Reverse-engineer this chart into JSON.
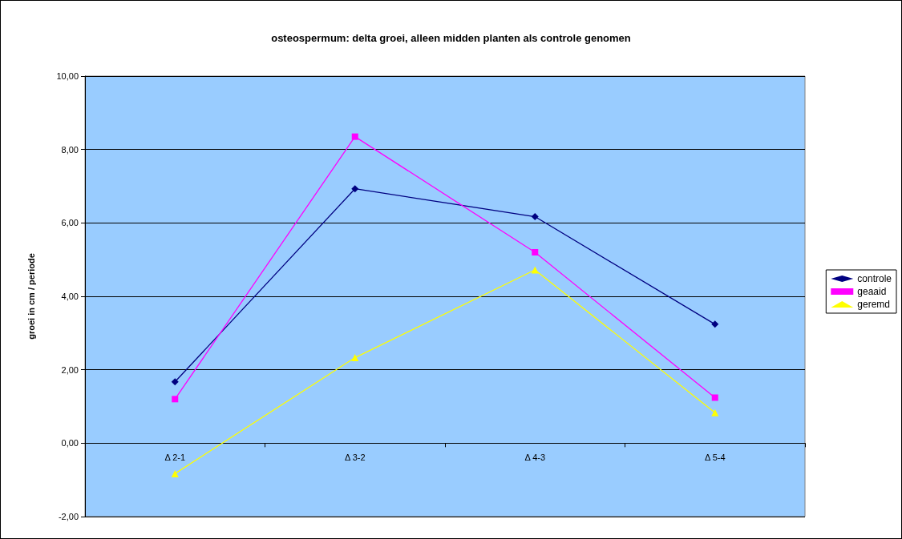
{
  "chart_data": {
    "type": "line",
    "title": "osteospermum: delta groei, alleen midden planten als controle genomen",
    "ylabel": "groei in cm / periode",
    "categories": [
      "Δ 2-1",
      "Δ 3-2",
      "Δ 4-3",
      "Δ 5-4"
    ],
    "series": [
      {
        "name": "controle",
        "color": "#000080",
        "marker": "diamond",
        "values": [
          1.67,
          6.93,
          6.17,
          3.24
        ]
      },
      {
        "name": "geaaid",
        "color": "#ff00ff",
        "marker": "square",
        "values": [
          1.2,
          8.35,
          5.2,
          1.24
        ]
      },
      {
        "name": "geremd",
        "color": "#ffff00",
        "marker": "triangle",
        "values": [
          -0.83,
          2.33,
          4.72,
          0.83
        ]
      }
    ],
    "ylim": [
      -2,
      10
    ],
    "yticks": [
      {
        "value": -2,
        "label": "-2,00"
      },
      {
        "value": 0,
        "label": "0,00"
      },
      {
        "value": 2,
        "label": "2,00"
      },
      {
        "value": 4,
        "label": "4,00"
      },
      {
        "value": 6,
        "label": "6,00"
      },
      {
        "value": 8,
        "label": "8,00"
      },
      {
        "value": 10,
        "label": "10,00"
      }
    ],
    "grid": "y",
    "legend": "right"
  }
}
